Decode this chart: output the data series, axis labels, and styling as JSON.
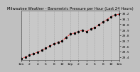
{
  "title": "Milwaukee Weather - Barometric Pressure per Hour (Last 24 Hours)",
  "title_fontsize": 3.8,
  "background_color": "#c0c0c0",
  "plot_bg_color": "#c8c8c8",
  "line_color": "#ff0000",
  "marker_color": "#000000",
  "grid_color": "#888888",
  "ylim": [
    29.35,
    30.25
  ],
  "xlim": [
    0,
    24
  ],
  "yticks": [
    29.4,
    29.5,
    29.6,
    29.7,
    29.8,
    29.9,
    30.0,
    30.1,
    30.2
  ],
  "ytick_labels": [
    "29.4",
    "29.5",
    "29.6",
    "29.7",
    "29.8",
    "29.9",
    "30.0",
    "30.1",
    "30.2"
  ],
  "xtick_positions": [
    0,
    2,
    4,
    6,
    8,
    10,
    12,
    14,
    16,
    18,
    20,
    22,
    24
  ],
  "xtick_labels": [
    "12a",
    "2",
    "4",
    "6",
    "8",
    "10",
    "12p",
    "2",
    "4",
    "6",
    "8",
    "10",
    "12a"
  ],
  "hours": [
    0,
    1,
    2,
    3,
    4,
    5,
    6,
    7,
    8,
    9,
    10,
    11,
    12,
    13,
    14,
    15,
    16,
    17,
    18,
    19,
    20,
    21,
    22,
    23,
    24
  ],
  "pressure": [
    29.37,
    29.4,
    29.43,
    29.46,
    29.49,
    29.52,
    29.56,
    29.6,
    29.64,
    29.67,
    29.7,
    29.76,
    29.82,
    29.84,
    29.87,
    29.89,
    29.87,
    29.91,
    29.94,
    29.99,
    30.04,
    30.09,
    30.14,
    30.17,
    30.19
  ],
  "tick_fontsize": 3.2,
  "marker_size": 1.2,
  "line_width": 0.5
}
